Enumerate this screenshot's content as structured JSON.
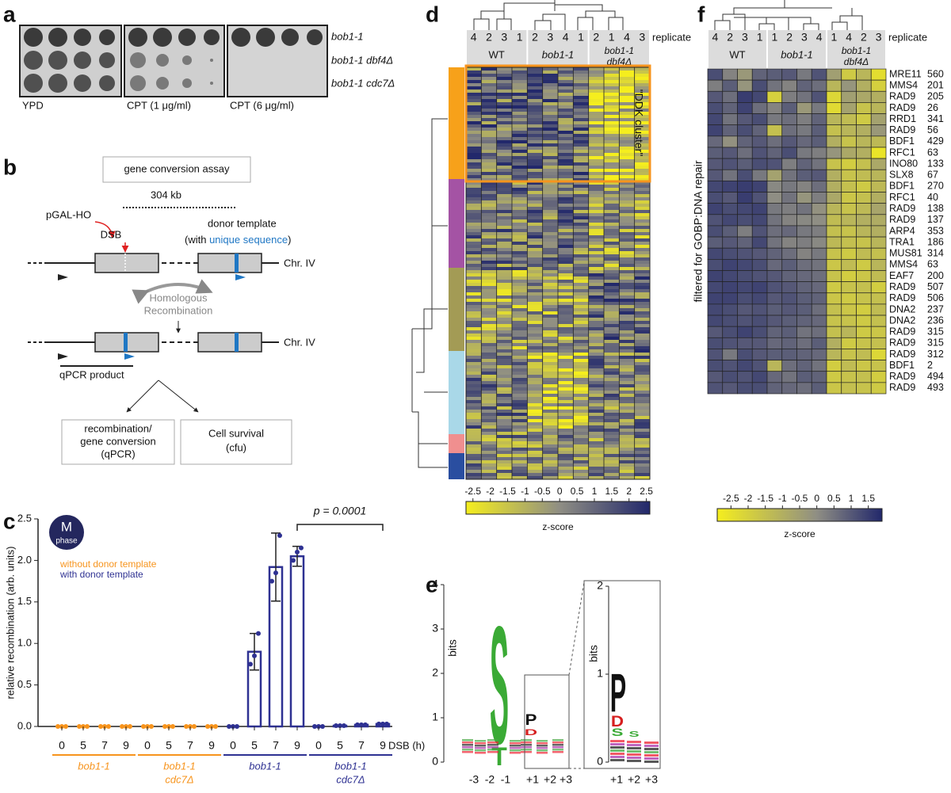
{
  "panel_labels": [
    "a",
    "b",
    "c",
    "d",
    "e",
    "f"
  ],
  "a": {
    "strains": [
      "bob1-1",
      "bob1-1 dbf4Δ",
      "bob1-1 cdc7Δ"
    ],
    "conditions": [
      "YPD",
      "CPT (1 μg/ml)",
      "CPT (6 μg/ml)"
    ]
  },
  "b": {
    "title": "gene conversion assay",
    "distance": "304 kb",
    "promoter": "pGAL-HO",
    "break": "DSB",
    "donor": "donor template",
    "donor_note": [
      "(with ",
      "unique sequence",
      ")"
    ],
    "chromosome": "Chr. IV",
    "process": [
      "Homologous",
      "Recombination"
    ],
    "product": "qPCR product",
    "readouts": [
      [
        "recombination/",
        "gene conversion",
        "(qPCR)"
      ],
      [
        "Cell survival",
        "(cfu)"
      ]
    ]
  },
  "chart_data": {
    "type": "bar",
    "ylabel": "relative recombination (arb. units)",
    "xlabel": "DSB (h)",
    "ylim": [
      0,
      2.5
    ],
    "yticks": [
      {
        "value": 0,
        "label": "0.0"
      },
      {
        "value": 0.5,
        "label": "0.5"
      },
      {
        "value": 1,
        "label": "1.0"
      },
      {
        "value": 1.5,
        "label": "1.5"
      },
      {
        "value": 2,
        "label": "2.0"
      },
      {
        "value": 2.5,
        "label": "2.5"
      }
    ],
    "badge": [
      "M",
      "phase"
    ],
    "legend": [
      {
        "name": "without donor template",
        "color": "#f7941d"
      },
      {
        "name": "with donor template",
        "color": "#2e3192"
      }
    ],
    "annotation": "p = 0.0001",
    "groups": [
      {
        "label": [
          "bob1-1"
        ],
        "color": "#f7941d",
        "categories": [
          "0",
          "5",
          "7",
          "9"
        ],
        "values": [
          0,
          0,
          0,
          0
        ],
        "errors": [
          null,
          null,
          null,
          null
        ],
        "points": [
          [
            0,
            0,
            0
          ],
          [
            0,
            0,
            0
          ],
          [
            0,
            0,
            0
          ],
          [
            0,
            0,
            0
          ]
        ]
      },
      {
        "label": [
          "bob1-1",
          "cdc7Δ"
        ],
        "color": "#f7941d",
        "categories": [
          "0",
          "5",
          "7",
          "9"
        ],
        "values": [
          0,
          0,
          0,
          0
        ],
        "errors": [
          null,
          null,
          null,
          null
        ],
        "points": [
          [
            0,
            0,
            0
          ],
          [
            0,
            0,
            0
          ],
          [
            0,
            0,
            0
          ],
          [
            0,
            0,
            0
          ]
        ]
      },
      {
        "label": [
          "bob1-1"
        ],
        "color": "#2e3192",
        "categories": [
          "0",
          "5",
          "7",
          "9"
        ],
        "values": [
          0,
          0.9,
          1.92,
          2.05
        ],
        "errors": [
          null,
          0.22,
          0.41,
          0.12
        ],
        "points": [
          [
            0,
            0,
            0
          ],
          [
            0.75,
            0.85,
            1.12
          ],
          [
            1.75,
            1.85,
            2.3
          ],
          [
            2.0,
            2.1,
            2.15
          ]
        ]
      },
      {
        "label": [
          "bob1-1",
          "cdc7Δ"
        ],
        "color": "#2e3192",
        "categories": [
          "0",
          "5",
          "7",
          "9"
        ],
        "values": [
          0,
          0.01,
          0.02,
          0.03
        ],
        "errors": [
          null,
          null,
          null,
          null
        ],
        "points": [
          [
            0,
            0,
            0
          ],
          [
            0.01,
            0.01,
            0.01
          ],
          [
            0.02,
            0.02,
            0.02
          ],
          [
            0.03,
            0.03,
            0.03
          ]
        ]
      }
    ]
  },
  "d": {
    "groups": [
      [
        "WT"
      ],
      [
        "bob1-1"
      ],
      [
        "bob1-1",
        "dbf4Δ"
      ]
    ],
    "replicates": [
      [
        "4",
        "2",
        "3",
        "1"
      ],
      [
        "2",
        "3",
        "4",
        "1"
      ],
      [
        "2",
        "1",
        "4",
        "3"
      ]
    ],
    "replicate_label": "replicate",
    "cluster_label": "\"DDK cluster\"",
    "cluster_colors": [
      "#f7a11a",
      "#a453a4",
      "#a39b55",
      "#a9d8e8",
      "#f08f8f",
      "#2a4ea0"
    ],
    "colorbar": {
      "label": "z-score",
      "lim": [
        -2.7,
        2.6
      ],
      "ticks": [
        -2.5,
        -2,
        -1.5,
        -1,
        -0.5,
        0,
        0.5,
        1,
        1.5,
        2,
        2.5
      ],
      "colorscale": [
        "#f5ee1e",
        "#8f8e84",
        "#22286b"
      ]
    }
  },
  "e": {
    "ylabel": "bits",
    "yticks": [
      0,
      1,
      2,
      3,
      4
    ],
    "ylim": [
      0,
      4
    ],
    "positions": [
      "-3",
      "-2",
      "-1",
      "+1",
      "+2",
      "+3"
    ],
    "letters": [
      "S",
      "T",
      "P",
      "D"
    ],
    "inset": {
      "ylabel": "bits",
      "yticks": [
        0,
        1,
        2
      ],
      "ylim": [
        0,
        2
      ],
      "positions": [
        "+1",
        "+2",
        "+3"
      ],
      "letters": [
        "P",
        "D",
        "S",
        "S"
      ]
    }
  },
  "f": {
    "groups": [
      [
        "WT"
      ],
      [
        "bob1-1"
      ],
      [
        "bob1-1",
        "dbf4Δ"
      ]
    ],
    "replicates": [
      [
        "4",
        "2",
        "3",
        "1"
      ],
      [
        "1",
        "2",
        "3",
        "4"
      ],
      [
        "1",
        "4",
        "2",
        "3"
      ]
    ],
    "replicate_label": "replicate",
    "side_label": "filtered for GOBP:DNA repair",
    "proteins": [
      "MRE11",
      "MMS4",
      "RAD9",
      "RAD9",
      "RRD1",
      "RAD9",
      "BDF1",
      "RFC1",
      "INO80",
      "SLX8",
      "BDF1",
      "RFC1",
      "RAD9",
      "RAD9",
      "ARP4",
      "TRA1",
      "MUS81",
      "MMS4",
      "EAF7",
      "RAD9",
      "RAD9",
      "DNA2",
      "DNA2",
      "RAD9",
      "RAD9",
      "RAD9",
      "BDF1",
      "RAD9",
      "RAD9"
    ],
    "sites": [
      "560",
      "201",
      "205",
      "26",
      "341",
      "56",
      "429",
      "63",
      "133",
      "67",
      "270",
      "40",
      "138",
      "137",
      "353",
      "186",
      "314",
      "63",
      "200",
      "507",
      "506",
      "237",
      "236",
      "315",
      "315",
      "312",
      "2",
      "494",
      "493"
    ],
    "values": [
      [
        1.2,
        0.2,
        -0.3,
        0.8,
        0.9,
        1.0,
        0.4,
        1.1,
        -0.5,
        -1.8,
        -1.2,
        -2.4
      ],
      [
        0.3,
        0.9,
        -0.2,
        1.2,
        0.5,
        0.2,
        0.8,
        0.6,
        -1.2,
        -0.2,
        -1.0,
        -2.0
      ],
      [
        1.0,
        0.6,
        1.5,
        1.3,
        -2.0,
        0.3,
        0.5,
        1.1,
        -2.2,
        -0.5,
        -0.8,
        -1.0
      ],
      [
        1.2,
        0.8,
        1.4,
        0.6,
        0.2,
        0.9,
        -0.3,
        0.4,
        -2.3,
        -0.6,
        -1.6,
        -1.2
      ],
      [
        1.3,
        0.5,
        1.0,
        1.2,
        0.4,
        0.6,
        0.3,
        0.8,
        -1.2,
        -1.4,
        -1.8,
        -0.6
      ],
      [
        1.4,
        0.8,
        1.2,
        0.8,
        -1.5,
        0.6,
        0.4,
        0.9,
        -1.5,
        -1.2,
        -1.0,
        -0.3
      ],
      [
        0.7,
        -0.1,
        0.8,
        1.0,
        0.6,
        1.0,
        0.7,
        0.9,
        -1.0,
        -1.6,
        -1.2,
        -1.3
      ],
      [
        0.9,
        1.0,
        0.6,
        1.1,
        0.8,
        1.2,
        0.4,
        0.3,
        -0.2,
        -0.8,
        -1.0,
        -2.6
      ],
      [
        1.0,
        1.1,
        0.9,
        1.2,
        1.1,
        0.3,
        0.8,
        0.5,
        -1.6,
        -1.9,
        -1.5,
        -0.8
      ],
      [
        1.0,
        0.5,
        1.2,
        0.4,
        -0.6,
        0.5,
        0.9,
        1.0,
        -1.0,
        -1.6,
        -1.4,
        -1.2
      ],
      [
        1.3,
        1.4,
        1.5,
        1.4,
        0.1,
        0.4,
        0.2,
        0.6,
        -1.0,
        -1.5,
        -1.8,
        -1.3
      ],
      [
        1.2,
        1.0,
        1.5,
        1.1,
        0.0,
        0.5,
        -0.2,
        0.3,
        -0.8,
        -1.7,
        -1.5,
        -1.0
      ],
      [
        1.4,
        1.2,
        1.3,
        1.4,
        0.4,
        0.3,
        0.5,
        -0.1,
        -1.2,
        -1.6,
        -1.3,
        -0.7
      ],
      [
        1.1,
        1.3,
        1.2,
        1.3,
        0.5,
        0.2,
        0.1,
        0.0,
        -1.4,
        -1.2,
        -1.0,
        -0.9
      ],
      [
        1.2,
        0.9,
        0.3,
        1.1,
        0.6,
        0.7,
        0.4,
        0.3,
        -1.5,
        -1.6,
        -1.2,
        -1.0
      ],
      [
        0.9,
        1.0,
        0.8,
        1.3,
        0.5,
        0.2,
        0.3,
        0.1,
        -1.3,
        -1.5,
        -1.6,
        -1.2
      ],
      [
        1.3,
        1.2,
        1.1,
        1.0,
        0.8,
        0.6,
        0.2,
        0.4,
        -1.6,
        -1.8,
        -1.4,
        -1.5
      ],
      [
        1.2,
        1.4,
        1.3,
        1.2,
        0.7,
        0.9,
        0.6,
        0.5,
        -1.7,
        -1.4,
        -1.8,
        -1.2
      ],
      [
        1.4,
        1.3,
        1.2,
        1.1,
        1.0,
        0.8,
        0.7,
        0.6,
        -1.6,
        -1.9,
        -1.7,
        -1.4
      ],
      [
        1.3,
        1.4,
        1.3,
        1.4,
        1.1,
        1.0,
        0.8,
        0.7,
        -1.8,
        -1.6,
        -1.5,
        -1.9
      ],
      [
        1.4,
        1.4,
        1.2,
        1.3,
        1.0,
        1.1,
        0.9,
        0.8,
        -1.7,
        -1.8,
        -1.6,
        -1.5
      ],
      [
        1.3,
        1.2,
        1.0,
        1.1,
        0.9,
        1.0,
        0.9,
        0.6,
        -1.5,
        -1.7,
        -1.9,
        -1.4
      ],
      [
        1.3,
        1.2,
        1.1,
        1.2,
        1.0,
        0.9,
        0.8,
        0.7,
        -1.6,
        -1.6,
        -1.8,
        -1.5
      ],
      [
        1.0,
        1.2,
        1.4,
        1.2,
        0.8,
        0.9,
        0.5,
        0.6,
        -1.5,
        -1.2,
        -1.8,
        -1.7
      ],
      [
        1.2,
        1.1,
        1.0,
        1.0,
        0.7,
        0.8,
        0.6,
        0.9,
        -1.0,
        -1.8,
        -1.6,
        -1.5
      ],
      [
        1.1,
        0.4,
        1.2,
        1.0,
        0.9,
        0.9,
        0.8,
        0.7,
        -1.2,
        -1.6,
        -1.4,
        -2.2
      ],
      [
        1.2,
        1.1,
        1.3,
        1.1,
        -1.2,
        0.6,
        0.8,
        0.5,
        -1.9,
        -1.4,
        -1.7,
        -1.6
      ],
      [
        1.0,
        1.2,
        1.1,
        1.3,
        0.7,
        0.5,
        0.9,
        0.8,
        -1.8,
        -1.6,
        -1.5,
        -1.9
      ],
      [
        1.1,
        1.0,
        1.2,
        1.2,
        0.8,
        0.7,
        0.6,
        0.9,
        -1.7,
        -1.5,
        -1.6,
        -1.8
      ]
    ],
    "colorbar": {
      "label": "z-score",
      "lim": [
        -2.9,
        1.9
      ],
      "ticks": [
        -2.5,
        -2,
        -1.5,
        -1,
        -0.5,
        0,
        0.5,
        1,
        1.5
      ],
      "colorscale": [
        "#f5ee1e",
        "#8f8e84",
        "#22286b"
      ]
    }
  }
}
